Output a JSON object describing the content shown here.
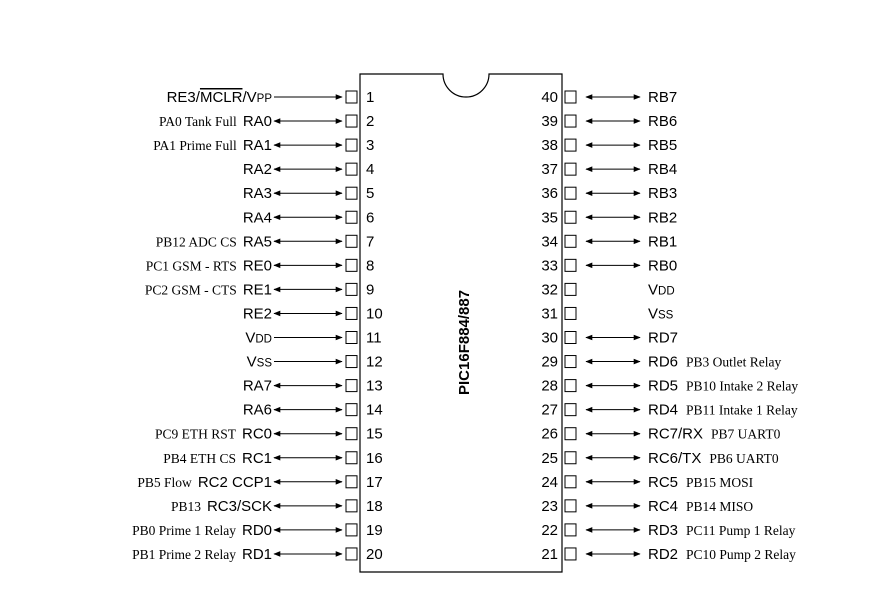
{
  "chip": {
    "part_number": "PIC16F884/887",
    "left_pins": [
      {
        "num": "1",
        "name": "RE3/MCLR/VPP",
        "desc": "",
        "dir": "in"
      },
      {
        "num": "2",
        "name": "RA0",
        "desc": "PA0 Tank Full",
        "dir": "both"
      },
      {
        "num": "3",
        "name": "RA1",
        "desc": "PA1 Prime Full",
        "dir": "both"
      },
      {
        "num": "4",
        "name": "RA2",
        "desc": "",
        "dir": "both"
      },
      {
        "num": "5",
        "name": "RA3",
        "desc": "",
        "dir": "both"
      },
      {
        "num": "6",
        "name": "RA4",
        "desc": "",
        "dir": "both"
      },
      {
        "num": "7",
        "name": "RA5",
        "desc": "PB12 ADC CS",
        "dir": "both"
      },
      {
        "num": "8",
        "name": "RE0",
        "desc": "PC1 GSM - RTS",
        "dir": "both"
      },
      {
        "num": "9",
        "name": "RE1",
        "desc": "PC2 GSM - CTS",
        "dir": "both"
      },
      {
        "num": "10",
        "name": "RE2",
        "desc": "",
        "dir": "both"
      },
      {
        "num": "11",
        "name": "VDD",
        "desc": "",
        "dir": "in"
      },
      {
        "num": "12",
        "name": "VSS",
        "desc": "",
        "dir": "in"
      },
      {
        "num": "13",
        "name": "RA7",
        "desc": "",
        "dir": "both"
      },
      {
        "num": "14",
        "name": "RA6",
        "desc": "",
        "dir": "both"
      },
      {
        "num": "15",
        "name": "RC0",
        "desc": "PC9 ETH RST",
        "dir": "both"
      },
      {
        "num": "16",
        "name": "RC1",
        "desc": "PB4 ETH CS",
        "dir": "both"
      },
      {
        "num": "17",
        "name": "RC2 CCP1",
        "desc": "PB5 Flow",
        "dir": "both"
      },
      {
        "num": "18",
        "name": "RC3/SCK",
        "desc": "PB13",
        "dir": "both"
      },
      {
        "num": "19",
        "name": "RD0",
        "desc": "PB0 Prime 1 Relay",
        "dir": "both"
      },
      {
        "num": "20",
        "name": "RD1",
        "desc": "PB1 Prime 2 Relay",
        "dir": "both"
      }
    ],
    "right_pins": [
      {
        "num": "40",
        "name": "RB7",
        "desc": "",
        "dir": "both"
      },
      {
        "num": "39",
        "name": "RB6",
        "desc": "",
        "dir": "both"
      },
      {
        "num": "38",
        "name": "RB5",
        "desc": "",
        "dir": "both"
      },
      {
        "num": "37",
        "name": "RB4",
        "desc": "",
        "dir": "both"
      },
      {
        "num": "36",
        "name": "RB3",
        "desc": "",
        "dir": "both"
      },
      {
        "num": "35",
        "name": "RB2",
        "desc": "",
        "dir": "both"
      },
      {
        "num": "34",
        "name": "RB1",
        "desc": "",
        "dir": "both"
      },
      {
        "num": "33",
        "name": "RB0",
        "desc": "",
        "dir": "both"
      },
      {
        "num": "32",
        "name": "VDD",
        "desc": "",
        "dir": "none"
      },
      {
        "num": "31",
        "name": "VSS",
        "desc": "",
        "dir": "none"
      },
      {
        "num": "30",
        "name": "RD7",
        "desc": "",
        "dir": "both"
      },
      {
        "num": "29",
        "name": "RD6",
        "desc": "PB3 Outlet Relay",
        "dir": "both"
      },
      {
        "num": "28",
        "name": "RD5",
        "desc": "PB10 Intake 2 Relay",
        "dir": "both"
      },
      {
        "num": "27",
        "name": "RD4",
        "desc": "PB11 Intake 1 Relay",
        "dir": "both"
      },
      {
        "num": "26",
        "name": "RC7/RX",
        "desc": "PB7 UART0",
        "dir": "both"
      },
      {
        "num": "25",
        "name": "RC6/TX",
        "desc": "PB6 UART0",
        "dir": "both"
      },
      {
        "num": "24",
        "name": "RC5",
        "desc": "PB15 MOSI",
        "dir": "both"
      },
      {
        "num": "23",
        "name": "RC4",
        "desc": "PB14 MISO",
        "dir": "both"
      },
      {
        "num": "22",
        "name": "RD3",
        "desc": "PC11 Pump 1 Relay",
        "dir": "both"
      },
      {
        "num": "21",
        "name": "RD2",
        "desc": "PC10 Pump 2 Relay",
        "dir": "both"
      }
    ]
  }
}
